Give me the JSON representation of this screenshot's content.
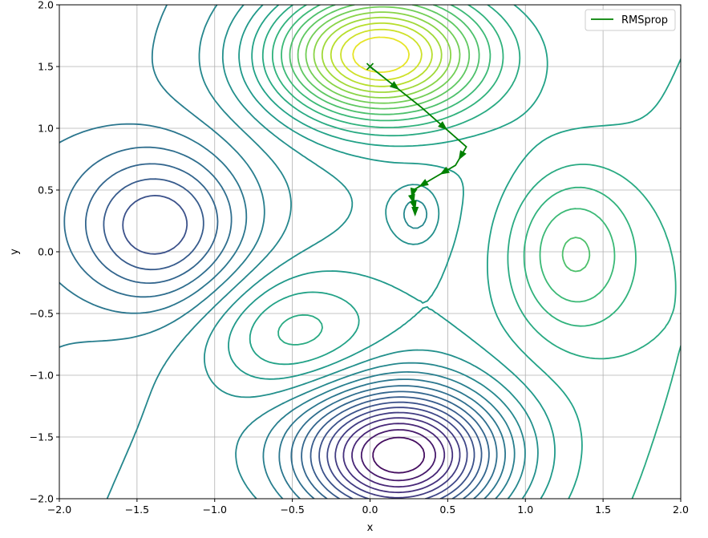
{
  "chart_data": {
    "type": "line",
    "title": "",
    "xlabel": "x",
    "ylabel": "y",
    "xlim": [
      -2.0,
      2.0
    ],
    "ylim": [
      -2.0,
      2.0
    ],
    "grid": true,
    "legend_placement": "top-right",
    "x_ticks": [
      -2.0,
      -1.5,
      -1.0,
      -0.5,
      0.0,
      0.5,
      1.0,
      1.5,
      2.0
    ],
    "x_tick_labels": [
      "−2.0",
      "−1.5",
      "−1.0",
      "−0.5",
      "0.0",
      "0.5",
      "1.0",
      "1.5",
      "2.0"
    ],
    "y_ticks": [
      -2.0,
      -1.5,
      -1.0,
      -0.5,
      0.0,
      0.5,
      1.0,
      1.5,
      2.0
    ],
    "y_tick_labels": [
      "−2.0",
      "−1.5",
      "−1.0",
      "−0.5",
      "0.0",
      "0.5",
      "1.0",
      "1.5",
      "2.0"
    ],
    "contour_colormap": "viridis",
    "series": [
      {
        "name": "RMSprop",
        "color": "#008000",
        "start_marker": "x",
        "x": [
          0.0,
          0.33,
          0.62,
          0.55,
          0.4,
          0.28,
          0.27,
          0.28,
          0.29,
          0.29
        ],
        "y": [
          1.5,
          1.17,
          0.85,
          0.7,
          0.59,
          0.5,
          0.45,
          0.4,
          0.35,
          0.3
        ]
      }
    ]
  }
}
